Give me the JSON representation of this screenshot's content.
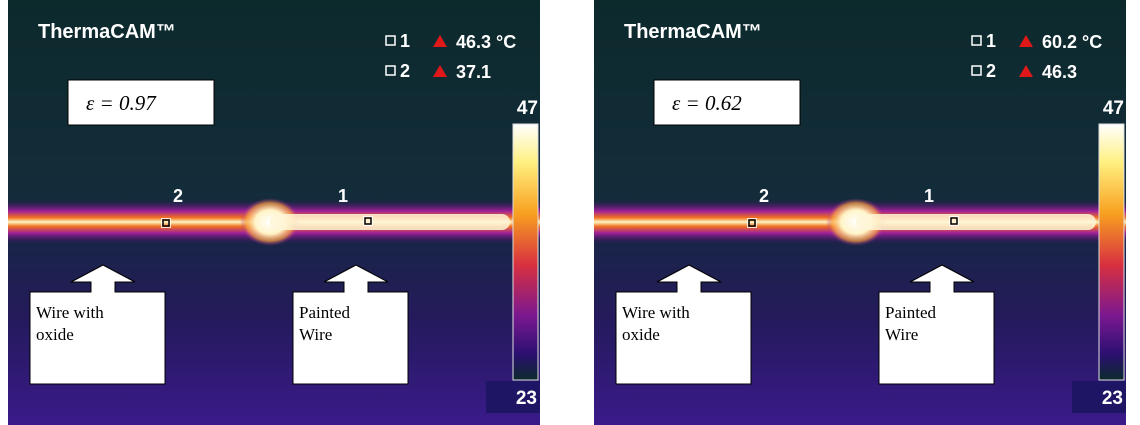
{
  "panels": [
    {
      "brand": "ThermaCAM™",
      "spots": [
        {
          "id": "1",
          "reading": "46.3 °C"
        },
        {
          "id": "2",
          "reading": "37.1"
        }
      ],
      "emissivity": "ε = 0.97",
      "scale": {
        "max": "47",
        "min": "23"
      },
      "markers": [
        "1",
        "2"
      ],
      "annotations": [
        {
          "lines": [
            "Wire with",
            "oxide"
          ]
        },
        {
          "lines": [
            "Painted",
            "Wire"
          ]
        }
      ]
    },
    {
      "brand": "ThermaCAM™",
      "spots": [
        {
          "id": "1",
          "reading": "60.2 °C"
        },
        {
          "id": "2",
          "reading": "46.3"
        }
      ],
      "emissivity": "ε = 0.62",
      "scale": {
        "max": "47",
        "min": "23"
      },
      "markers": [
        "1",
        "2"
      ],
      "annotations": [
        {
          "lines": [
            "Wire with",
            "oxide"
          ]
        },
        {
          "lines": [
            "Painted",
            "Wire"
          ]
        }
      ]
    }
  ]
}
